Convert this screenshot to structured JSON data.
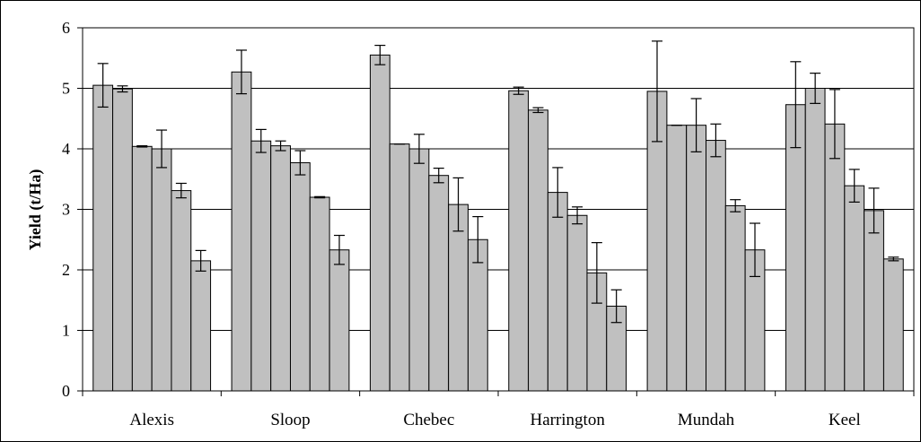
{
  "chart_data": {
    "type": "bar",
    "title": "",
    "xlabel": "",
    "ylabel": "Yield (t/Ha)",
    "ylim": [
      0,
      6
    ],
    "yticks": [
      "0",
      "1",
      "2",
      "3",
      "4",
      "5",
      "6"
    ],
    "grid": true,
    "legend": "none",
    "bar_color": "#c0c0c0",
    "categories": [
      "Alexis",
      "Sloop",
      "Chebec",
      "Harrington",
      "Mundah",
      "Keel"
    ],
    "values": [
      [
        5.05,
        4.99,
        4.04,
        4.0,
        3.31,
        2.15
      ],
      [
        5.27,
        4.13,
        4.05,
        3.77,
        3.2,
        2.33
      ],
      [
        5.55,
        4.08,
        4.0,
        3.56,
        3.08,
        2.5
      ],
      [
        4.96,
        4.64,
        3.28,
        2.9,
        1.95,
        1.4
      ],
      [
        4.95,
        4.39,
        4.39,
        4.14,
        3.06,
        2.33
      ],
      [
        4.73,
        5.0,
        4.41,
        3.39,
        2.98,
        2.18
      ]
    ],
    "errors": [
      [
        0.36,
        0.05,
        0.01,
        0.31,
        0.12,
        0.17
      ],
      [
        0.36,
        0.19,
        0.08,
        0.2,
        0.01,
        0.24
      ],
      [
        0.16,
        0.0,
        0.24,
        0.12,
        0.44,
        0.38
      ],
      [
        0.06,
        0.04,
        0.41,
        0.14,
        0.5,
        0.27
      ],
      [
        0.83,
        0.0,
        0.44,
        0.27,
        0.1,
        0.44
      ],
      [
        0.71,
        0.25,
        0.57,
        0.27,
        0.37,
        0.03
      ]
    ]
  }
}
